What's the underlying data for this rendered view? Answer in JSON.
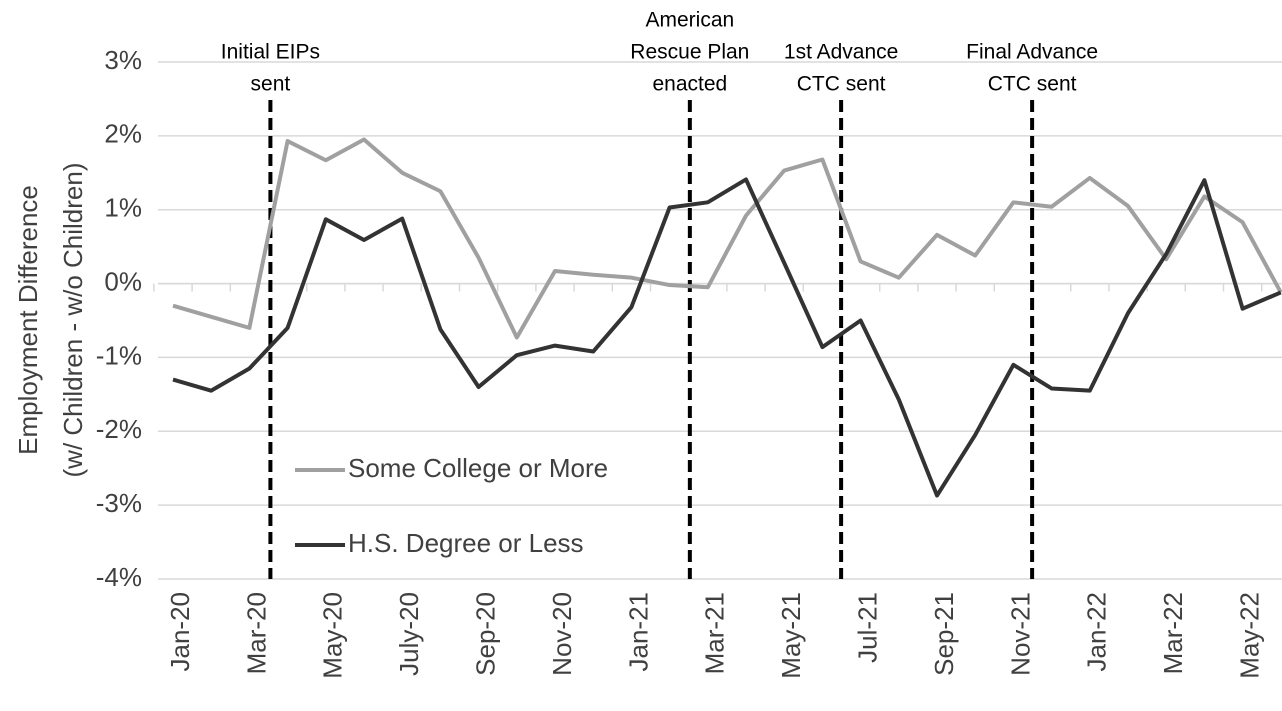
{
  "chart_data": {
    "type": "line",
    "ylabel": [
      "Employment Difference",
      "(w/ Children - w/o Children)"
    ],
    "categories": [
      "Jan-20",
      null,
      "Mar-20",
      null,
      "May-20",
      null,
      "July-20",
      null,
      "Sep-20",
      null,
      "Nov-20",
      null,
      "Jan-21",
      null,
      "Mar-21",
      null,
      "May-21",
      null,
      "Jul-21",
      null,
      "Sep-21",
      null,
      "Nov-21",
      null,
      "Jan-22",
      null,
      "Mar-22",
      null,
      "May-22",
      null
    ],
    "series": [
      {
        "name": "Some College or More",
        "color": "#a0a0a0",
        "values": [
          -0.3,
          -0.45,
          -0.6,
          1.93,
          1.67,
          1.95,
          1.5,
          1.25,
          0.35,
          -0.73,
          0.17,
          0.12,
          0.08,
          -0.02,
          -0.05,
          0.92,
          1.53,
          1.68,
          0.3,
          0.08,
          0.66,
          0.38,
          1.1,
          1.04,
          1.43,
          1.05,
          0.33,
          1.18,
          0.83,
          -0.12
        ]
      },
      {
        "name": "H.S. Degree or Less",
        "color": "#333333",
        "values": [
          -1.3,
          -1.45,
          -1.15,
          -0.6,
          0.87,
          0.59,
          0.88,
          -0.62,
          -1.4,
          -0.97,
          -0.84,
          -0.92,
          -0.32,
          1.03,
          1.1,
          1.41,
          0.28,
          -0.86,
          -0.5,
          -1.57,
          -2.87,
          -2.05,
          -1.1,
          -1.42,
          -1.45,
          -0.4,
          0.4,
          1.4,
          -0.34,
          -0.12
        ]
      }
    ],
    "events": [
      {
        "label": [
          "Initial EIPs",
          "sent"
        ],
        "x": 2.55
      },
      {
        "label": [
          "American",
          "Rescue Plan",
          "enacted"
        ],
        "x": 13.53
      },
      {
        "label": [
          "1st Advance",
          "CTC sent"
        ],
        "x": 17.49
      },
      {
        "label": [
          "Final Advance",
          "CTC sent"
        ],
        "x": 22.49
      }
    ],
    "ylim": [
      -4,
      3
    ],
    "yticks": [
      {
        "value": -4,
        "label": "-4%"
      },
      {
        "value": -3,
        "label": "-3%"
      },
      {
        "value": -2,
        "label": "-2%"
      },
      {
        "value": -1,
        "label": "-1%"
      },
      {
        "value": 0,
        "label": "0%"
      },
      {
        "value": 1,
        "label": "1%"
      },
      {
        "value": 2,
        "label": "2%"
      },
      {
        "value": 3,
        "label": "3%"
      }
    ],
    "grid": true
  }
}
